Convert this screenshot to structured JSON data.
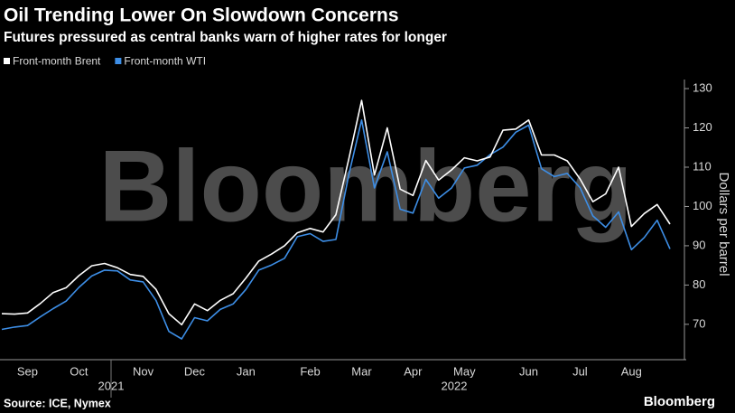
{
  "chart_data": {
    "type": "line",
    "title": "Oil Trending Lower On Slowdown Concerns",
    "subtitle": "Futures pressured as central banks warn of higher rates for longer",
    "y_label": "Dollars per barrel",
    "source": "Source: ICE, Nymex",
    "watermark": "Bloomberg",
    "logo": "Bloomberg",
    "year_labels": [
      "2021",
      "2022"
    ],
    "categories": [
      null,
      null,
      "Sep",
      null,
      null,
      null,
      "Oct",
      null,
      null,
      null,
      null,
      "Nov",
      null,
      null,
      null,
      "Dec",
      null,
      null,
      null,
      "Jan",
      null,
      null,
      null,
      null,
      "Feb",
      null,
      null,
      null,
      "Mar",
      null,
      null,
      null,
      "Apr",
      null,
      null,
      null,
      "May",
      null,
      null,
      null,
      null,
      "Jun",
      null,
      null,
      null,
      "Jul",
      null,
      null,
      null,
      "Aug",
      null,
      null,
      null
    ],
    "series": [
      {
        "name": "Front-month Brent",
        "color": "#ffffff",
        "values": [
          72.7,
          72.6,
          72.9,
          75.3,
          78.1,
          79.3,
          82.4,
          84.9,
          85.5,
          84.4,
          82.7,
          82.2,
          78.9,
          72.7,
          69.9,
          75.2,
          73.5,
          76.1,
          77.8,
          81.8,
          86.1,
          87.9,
          90.0,
          93.3,
          94.4,
          93.5,
          97.9,
          112,
          127,
          108,
          120,
          104.4,
          102.8,
          111.7,
          106.7,
          109.3,
          112.4,
          111.6,
          112.6,
          119.4,
          119.7,
          122.0,
          113.1,
          113.1,
          111.6,
          107.0,
          101.2,
          103.2,
          110.0,
          94.9,
          98.2,
          100.5,
          95.5
        ]
      },
      {
        "name": "Front-month WTI",
        "color": "#3d8ee6",
        "values": [
          68.7,
          69.3,
          69.7,
          71.9,
          74.0,
          75.9,
          79.4,
          82.3,
          83.8,
          83.6,
          81.3,
          80.8,
          76.1,
          68.2,
          66.3,
          71.7,
          70.9,
          73.8,
          75.2,
          78.9,
          83.8,
          85.1,
          86.8,
          92.3,
          93.1,
          91.1,
          91.6,
          108,
          122,
          104.7,
          113.9,
          99.3,
          98.3,
          106.9,
          102.1,
          104.7,
          109.8,
          110.5,
          113.2,
          115.1,
          118.9,
          120.7,
          109.6,
          107.6,
          108.4,
          104.8,
          97.6,
          94.7,
          98.6,
          89.0,
          92.1,
          96.5,
          89.2
        ]
      }
    ],
    "ylim": [
      61,
      133
    ],
    "yticks": [
      70,
      80,
      90,
      100,
      110,
      120,
      130
    ],
    "legend": "top-left"
  }
}
